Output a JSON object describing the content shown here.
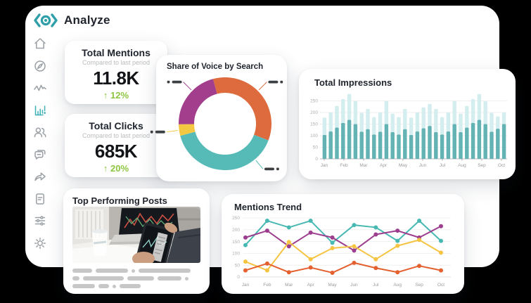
{
  "app": {
    "name": "Analyze"
  },
  "colors": {
    "background": "#000000",
    "window": "#ffffff",
    "accent_teal": "#2f9fa9",
    "active_icon": "#3fb0b5",
    "positive_green": "#8dc63f",
    "text_dark": "#20252e",
    "text_muted": "#b9bcbf",
    "axis_text": "#9b9b9b",
    "redacted_label": "#3d4043"
  },
  "sidebar": {
    "items": [
      {
        "id": "home",
        "icon": "home-icon",
        "active": false
      },
      {
        "id": "dashboard",
        "icon": "compass-icon",
        "active": false
      },
      {
        "id": "activity",
        "icon": "activity-pulse-icon",
        "active": false
      },
      {
        "id": "analytics",
        "icon": "bar-chart-icon",
        "active": true
      },
      {
        "id": "audience",
        "icon": "users-icon",
        "active": false
      },
      {
        "id": "messages",
        "icon": "chat-bubbles-icon",
        "active": false
      },
      {
        "id": "share",
        "icon": "share-arrow-icon",
        "active": false
      },
      {
        "id": "reports",
        "icon": "document-icon",
        "active": false
      },
      {
        "id": "filters",
        "icon": "sliders-icon",
        "active": false
      },
      {
        "id": "settings",
        "icon": "gear-icon",
        "active": false
      }
    ]
  },
  "cards": {
    "total_mentions": {
      "title": "Total Mentions",
      "subtitle": "Compared to last period",
      "value": "11.8K",
      "change": "↑ 12%"
    },
    "total_clicks": {
      "title": "Total Clicks",
      "subtitle": "Compared to last period",
      "value": "685K",
      "change": "↑ 20%"
    },
    "share_of_voice": {
      "title": "Share of Voice by Search",
      "chart_data": {
        "type": "pie",
        "donut": true,
        "labels_redacted": true,
        "start_angle_deg": -15,
        "segments": [
          {
            "label": "",
            "share": 35,
            "color": "#dd6b3d",
            "callout_deg": 45
          },
          {
            "label": "",
            "share": 40,
            "color": "#56bbb7",
            "callout_deg": 140
          },
          {
            "label": "",
            "share": 4,
            "color": "#f5c844",
            "callout_deg": 262
          },
          {
            "label": "",
            "share": 21,
            "color": "#a23e8c",
            "callout_deg": 315
          }
        ]
      }
    },
    "total_impressions": {
      "title": "Total Impressions",
      "chart_data": {
        "type": "bar",
        "stacked": true,
        "x_tick_labels": [
          "Jan",
          "Feb",
          "Mar",
          "Apr",
          "May",
          "Jun",
          "Jul",
          "Aug",
          "Sep",
          "Oct"
        ],
        "y_ticks": [
          0,
          50,
          100,
          150,
          200,
          250
        ],
        "ylim": [
          0,
          280
        ],
        "series": [
          {
            "name": "primary",
            "color": "#63b3b5",
            "values": [
              103,
              118,
              135,
              155,
              168,
              150,
              117,
              128,
              105,
              117,
              150,
              115,
              105,
              128,
              103,
              118,
              132,
              142,
              115,
              105,
              118,
              150,
              115,
              135,
              155,
              168,
              150,
              117,
              130,
              150
            ]
          },
          {
            "name": "secondary",
            "color": "#d4eef0",
            "values": [
              75,
              82,
              93,
              103,
              112,
              100,
              81,
              87,
              75,
              83,
              100,
              80,
              75,
              87,
              75,
              82,
              90,
              95,
              100,
              75,
              82,
              100,
              80,
              93,
              103,
              112,
              98,
              81,
              53,
              50
            ]
          }
        ]
      }
    },
    "top_performing_posts": {
      "title": "Top Performing Posts",
      "image": "photo-tablet-stock-charts",
      "text_redacted": true
    },
    "mentions_trend": {
      "title": "Mentions Trend",
      "chart_data": {
        "type": "line",
        "x_tick_labels": [
          "Jan",
          "Feb",
          "Mar",
          "Apr",
          "May",
          "Jun",
          "Jul",
          "Aug",
          "Sep",
          "Oct"
        ],
        "y_ticks": [
          0,
          50,
          100,
          150,
          200,
          250
        ],
        "ylim": [
          0,
          250
        ],
        "series": [
          {
            "name": "teal",
            "color": "#48b8b2",
            "values": [
              135,
              238,
              210,
              238,
              145,
              220,
              210,
              153,
              238,
              153
            ]
          },
          {
            "name": "purple",
            "color": "#9c3d8e",
            "values": [
              167,
              196,
              130,
              188,
              167,
              112,
              180,
              196,
              167,
              215
            ]
          },
          {
            "name": "yellow",
            "color": "#f5c443",
            "values": [
              65,
              28,
              148,
              75,
              122,
              130,
              75,
              132,
              157,
              103
            ]
          },
          {
            "name": "orange",
            "color": "#e4602f",
            "values": [
              28,
              57,
              20,
              40,
              18,
              60,
              38,
              20,
              47,
              28
            ]
          }
        ]
      }
    }
  }
}
